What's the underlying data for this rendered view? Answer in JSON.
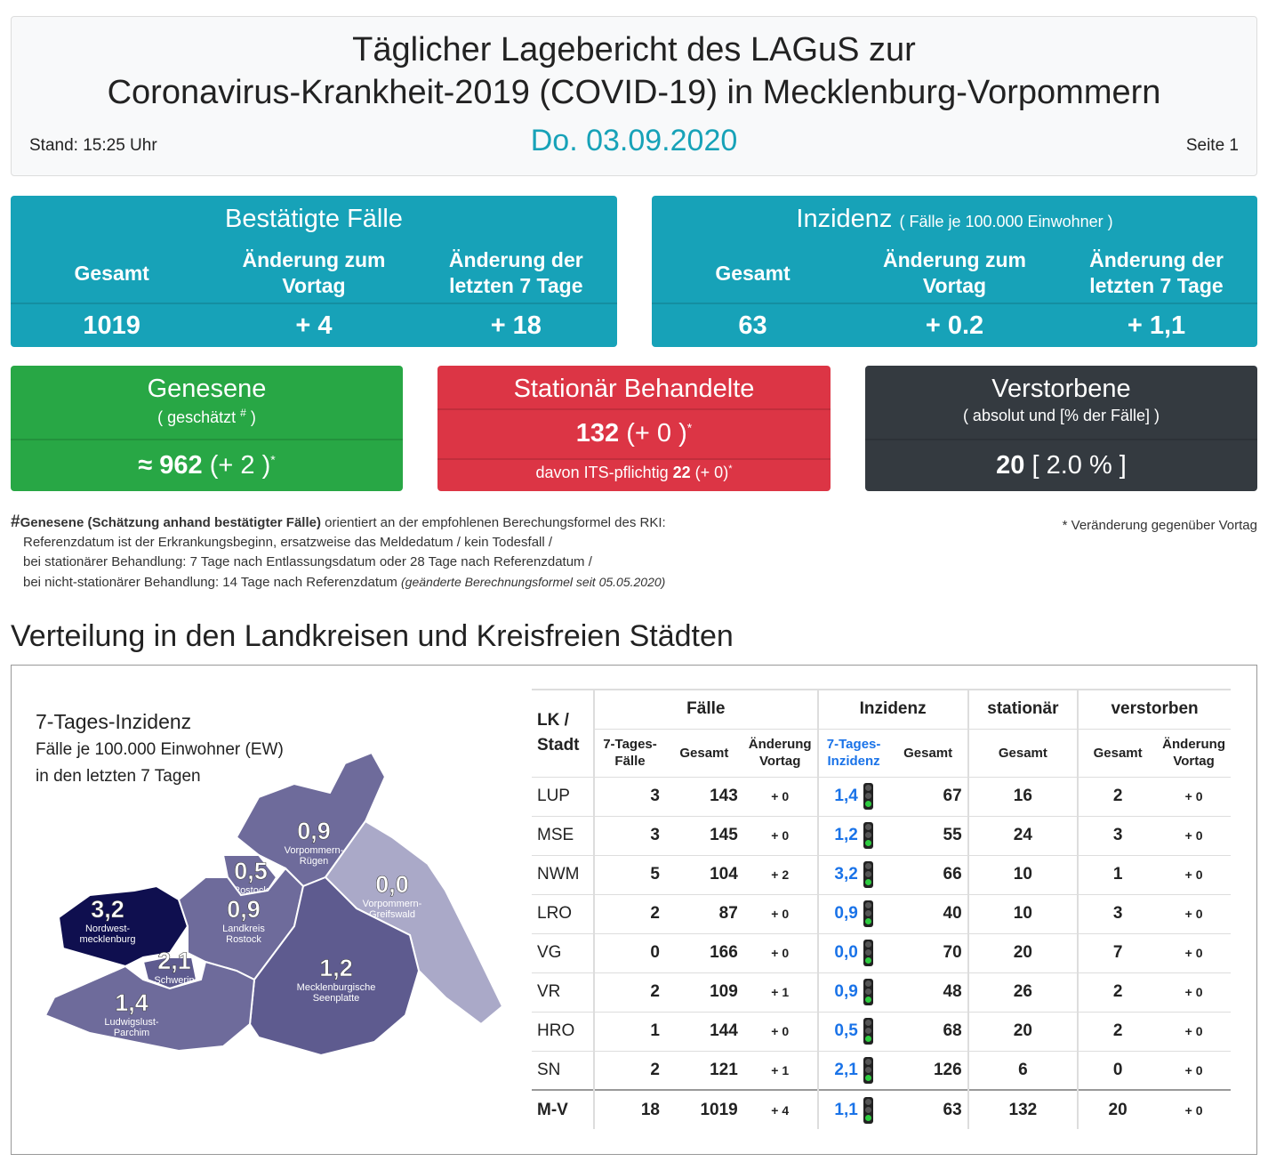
{
  "header": {
    "title_line1": "Täglicher Lagebericht des LAGuS zur",
    "title_line2": "Coronavirus-Krankheit-2019 (COVID-19) in Mecklenburg-Vorpommern",
    "stand": "Stand: 15:25 Uhr",
    "date": "Do. 03.09.2020",
    "page": "Seite 1"
  },
  "cases": {
    "title": "Bestätigte Fälle",
    "headers": [
      "Gesamt",
      "Änderung zum Vortag",
      "Änderung der letzten 7 Tage"
    ],
    "values": [
      "1019",
      "+ 4",
      "+ 18"
    ]
  },
  "incidence": {
    "title": "Inzidenz",
    "subtitle": "( Fälle je 100.000 Einwohner )",
    "headers": [
      "Gesamt",
      "Änderung zum Vortag",
      "Änderung der letzten 7 Tage"
    ],
    "values": [
      "63",
      "+ 0.2",
      "+ 1,1"
    ]
  },
  "recovered": {
    "title": "Genesene",
    "subtitle": "( geschätzt",
    "subtitle_mark": "#",
    "subtitle_end": ")",
    "value": "≈ 962",
    "change": "(+ 2 )",
    "mark": "*"
  },
  "hospital": {
    "title": "Stationär Behandelte",
    "value": "132",
    "change": "(+ 0 )",
    "mark": "*",
    "its_label": "davon ITS-pflichtig",
    "its_value": "22",
    "its_change": "(+ 0)",
    "its_mark": "*"
  },
  "deaths": {
    "title": "Verstorbene",
    "subtitle": "( absolut und [% der Fälle] )",
    "value": "20",
    "percent": "[ 2.0 % ]"
  },
  "notes": {
    "hash": "#",
    "bold": "Genesene (Schätzung anhand bestätigter Fälle)",
    "line1": "orientiert an der empfohlenen Berechungsformel des RKI:",
    "line2": "Referenzdatum ist der Erkrankungsbeginn, ersatzweise das Meldedatum / kein Todesfall /",
    "line3": "bei stationärer Behandlung: 7 Tage nach Entlassungsdatum oder 28 Tage nach Referenzdatum /",
    "line4": "bei nicht-stationärer Behandlung: 14 Tage nach Referenzdatum",
    "line4_italic": "(geänderte Berechnungsformel seit 05.05.2020)",
    "change_note": "* Veränderung gegenüber Vortag"
  },
  "section_title": "Verteilung in den Landkreisen und Kreisfreien Städten",
  "map": {
    "title": "7-Tages-Inzidenz",
    "subtitle_line1": "Fälle je 100.000 Einwohner (EW)",
    "subtitle_line2": "in den letzten 7 Tagen",
    "regions": [
      {
        "value": "0,9",
        "name": [
          "Vorpommern-",
          "Rügen"
        ],
        "color": "#6e6b9b"
      },
      {
        "value": "0,5",
        "name": [
          "Rostock"
        ],
        "color": "#6e6b9b"
      },
      {
        "value": "0,0",
        "name": [
          "Vorpommern-",
          "Greifswald"
        ],
        "color": "#aaa9c8"
      },
      {
        "value": "3,2",
        "name": [
          "Nordwest-",
          "mecklenburg"
        ],
        "color": "#0f0f4f"
      },
      {
        "value": "0,9",
        "name": [
          "Landkreis",
          "Rostock"
        ],
        "color": "#6e6b9b"
      },
      {
        "value": "2,1",
        "name": [
          "Schwerin"
        ],
        "color": "#5e5b8f"
      },
      {
        "value": "1,2",
        "name": [
          "Mecklenburgische",
          "Seenplatte"
        ],
        "color": "#5e5b8f"
      },
      {
        "value": "1,4",
        "name": [
          "Ludwigslust-",
          "Parchim"
        ],
        "color": "#6e6b9b"
      }
    ]
  },
  "table": {
    "first_header": "LK / Stadt",
    "group_headers": [
      "Fälle",
      "Inzidenz",
      "stationär",
      "verstorben"
    ],
    "sub_headers": [
      "7-Tages-Fälle",
      "Gesamt",
      "Änderung Vortag",
      "7-Tages-Inzidenz",
      "Gesamt",
      "Gesamt",
      "Gesamt",
      "Änderung Vortag"
    ],
    "rows": [
      [
        "LUP",
        "3",
        "143",
        "+ 0",
        "1,4",
        "67",
        "16",
        "2",
        "+ 0"
      ],
      [
        "MSE",
        "3",
        "145",
        "+ 0",
        "1,2",
        "55",
        "24",
        "3",
        "+ 0"
      ],
      [
        "NWM",
        "5",
        "104",
        "+ 2",
        "3,2",
        "66",
        "10",
        "1",
        "+ 0"
      ],
      [
        "LRO",
        "2",
        "87",
        "+ 0",
        "0,9",
        "40",
        "10",
        "3",
        "+ 0"
      ],
      [
        "VG",
        "0",
        "166",
        "+ 0",
        "0,0",
        "70",
        "20",
        "7",
        "+ 0"
      ],
      [
        "VR",
        "2",
        "109",
        "+ 1",
        "0,9",
        "48",
        "26",
        "2",
        "+ 0"
      ],
      [
        "HRO",
        "1",
        "144",
        "+ 0",
        "0,5",
        "68",
        "20",
        "2",
        "+ 0"
      ],
      [
        "SN",
        "2",
        "121",
        "+ 1",
        "2,1",
        "126",
        "6",
        "0",
        "+ 0"
      ],
      [
        "M-V",
        "18",
        "1019",
        "+ 4",
        "1,1",
        "63",
        "132",
        "20",
        "+ 0"
      ]
    ]
  }
}
